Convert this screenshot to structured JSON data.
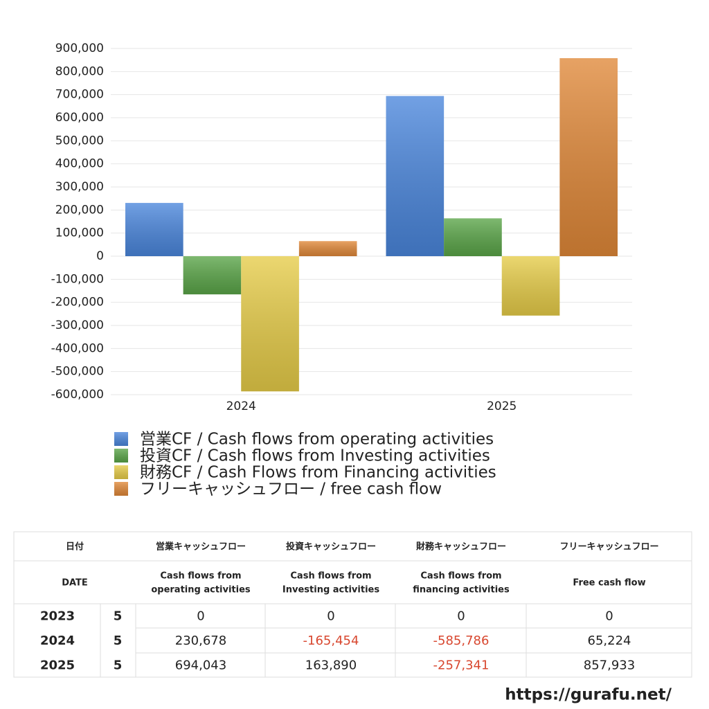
{
  "chart_data": {
    "type": "bar",
    "categories": [
      "2024",
      "2025"
    ],
    "series": [
      {
        "name": "営業CF / Cash flows from operating activities",
        "color": "#4a86dc",
        "values": [
          230678,
          694043
        ]
      },
      {
        "name": "投資CF / Cash flows from Investing activities",
        "color": "#5aa548",
        "values": [
          -165454,
          163890
        ]
      },
      {
        "name": "財務CF / Cash Flows from Financing activities",
        "color": "#e6cc48",
        "values": [
          -585786,
          -257341
        ]
      },
      {
        "name": "フリーキャッシュフロー / free cash flow",
        "color": "#e08838",
        "values": [
          65224,
          857933
        ]
      }
    ],
    "ylim": [
      -600000,
      900000
    ],
    "yticks": [
      {
        "value": -600000,
        "label": "-600,000"
      },
      {
        "value": -500000,
        "label": "-500,000"
      },
      {
        "value": -400000,
        "label": "-400,000"
      },
      {
        "value": -300000,
        "label": "-300,000"
      },
      {
        "value": -200000,
        "label": "-200,000"
      },
      {
        "value": -100000,
        "label": "-100,000"
      },
      0,
      {
        "value": 100000,
        "label": "100,000"
      },
      {
        "value": 200000,
        "label": "200,000"
      },
      {
        "value": 300000,
        "label": "300,000"
      },
      {
        "value": 400000,
        "label": "400,000"
      },
      {
        "value": 500000,
        "label": "500,000"
      },
      {
        "value": 600000,
        "label": "600,000"
      },
      {
        "value": 700000,
        "label": "700,000"
      },
      {
        "value": 800000,
        "label": "800,000"
      },
      {
        "value": 900000,
        "label": "900,000"
      }
    ],
    "grid": true,
    "legend": "bottom"
  },
  "table": {
    "header": [
      "日付",
      "営業キャッシュフロー",
      "投資キャッシュフロー",
      "財務キャッシュフロー",
      "フリーキャッシュフロー"
    ],
    "subheader": [
      [
        "DATE"
      ],
      [
        "Cash flows from",
        "operating activities"
      ],
      [
        "Cash flows from",
        "Investing activities"
      ],
      [
        "Cash flows from",
        "financing activities"
      ],
      [
        "Free cash flow"
      ]
    ],
    "rows": [
      [
        "2023",
        "5",
        "0",
        "0",
        "0",
        "0"
      ],
      [
        "2024",
        "5",
        "230,678",
        "-165,454",
        "-585,786",
        "65,224"
      ],
      [
        "2025",
        "5",
        "694,043",
        "163,890",
        "-257,341",
        "857,933"
      ]
    ]
  },
  "footer": "https://gurafu.net/"
}
